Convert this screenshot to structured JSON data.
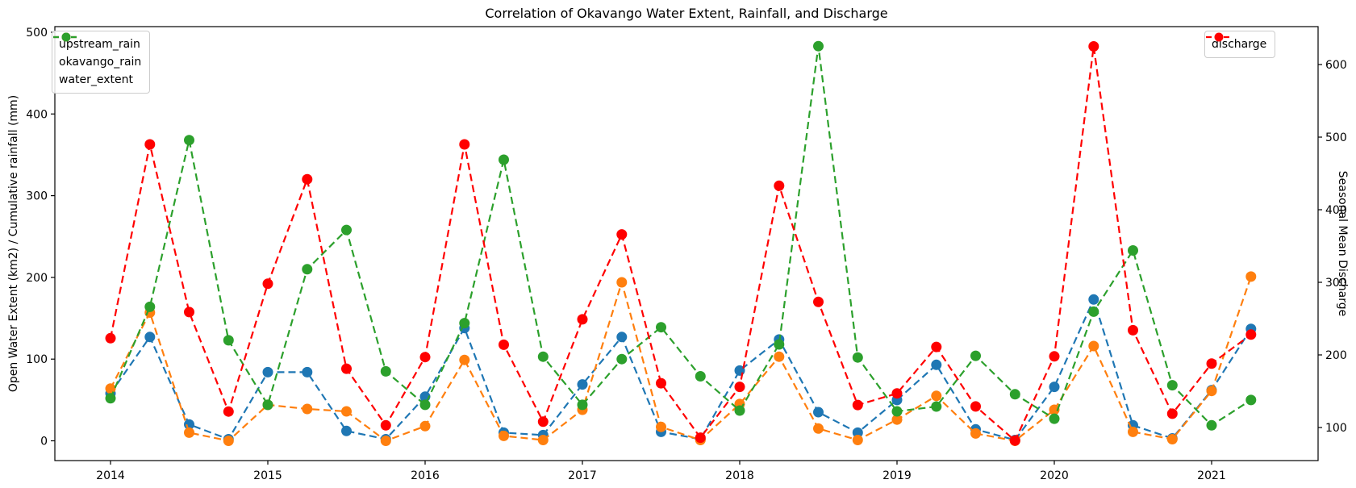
{
  "figure": {
    "title": "Correlation of Okavango Water Extent, Rainfall, and Discharge",
    "left_axis_label": "Open Water Extent (km2) / Cumulative rainfall (mm)",
    "right_axis_label": "Seasonal Mean Discharge",
    "background_color": "#ffffff",
    "spine_color": "#000000"
  },
  "chart_data": {
    "type": "line",
    "title": "Correlation of Okavango Water Extent, Rainfall, and Discharge",
    "xlabel": "",
    "ylabel_left": "Open Water Extent (km2) / Cumulative rainfall (mm)",
    "ylabel_right": "Seasonal Mean Discharge",
    "grid": false,
    "line_style": "dashed",
    "marker": "circle",
    "x": [
      2014.0,
      2014.25,
      2014.5,
      2014.75,
      2015.0,
      2015.25,
      2015.5,
      2015.75,
      2016.0,
      2016.25,
      2016.5,
      2016.75,
      2017.0,
      2017.25,
      2017.5,
      2017.75,
      2018.0,
      2018.25,
      2018.5,
      2018.75,
      2019.0,
      2019.25,
      2019.5,
      2019.75,
      2020.0,
      2020.25,
      2020.5,
      2020.75,
      2021.0,
      2021.25
    ],
    "x_ticks": [
      2014,
      2015,
      2016,
      2017,
      2018,
      2019,
      2020,
      2021
    ],
    "x_tick_labels": [
      "2014",
      "2015",
      "2016",
      "2017",
      "2018",
      "2019",
      "2020",
      "2021"
    ],
    "left_yticks": [
      0,
      100,
      200,
      300,
      400,
      500
    ],
    "right_yticks": [
      100,
      200,
      300,
      400,
      500,
      600
    ],
    "left_ylim": [
      -20,
      507
    ],
    "right_ylim": [
      57,
      652
    ],
    "legend_left_entries": [
      "upstream_rain",
      "okavango_rain",
      "water_extent"
    ],
    "legend_right_entries": [
      "discharge"
    ],
    "series": [
      {
        "name": "upstream_rain",
        "axis": "left",
        "color": "#1f77b4",
        "values": [
          58,
          127,
          20,
          2,
          84,
          84,
          12,
          2,
          54,
          138,
          10,
          7,
          69,
          127,
          11,
          2,
          86,
          124,
          35,
          10,
          50,
          93,
          14,
          1,
          66,
          173,
          19,
          3,
          62,
          137
        ]
      },
      {
        "name": "okavango_rain",
        "axis": "left",
        "color": "#ff7f0e",
        "values": [
          64,
          157,
          10,
          0,
          44,
          39,
          36,
          0,
          18,
          99,
          6,
          1,
          38,
          194,
          17,
          1,
          45,
          103,
          15,
          1,
          26,
          55,
          9,
          0,
          38,
          116,
          11,
          2,
          61,
          201
        ]
      },
      {
        "name": "water_extent",
        "axis": "left",
        "color": "#2ca02c",
        "values": [
          52,
          164,
          368,
          123,
          44,
          210,
          258,
          85,
          44,
          144,
          344,
          103,
          44,
          100,
          139,
          79,
          37,
          118,
          483,
          102,
          36,
          42,
          104,
          57,
          27,
          158,
          233,
          68,
          19,
          50
        ]
      },
      {
        "name": "discharge",
        "axis": "right",
        "color": "#ff0000",
        "values": [
          223,
          490,
          259,
          122,
          298,
          442,
          181,
          103,
          197,
          490,
          214,
          108,
          249,
          366,
          161,
          86,
          156,
          433,
          273,
          131,
          147,
          211,
          129,
          82,
          198,
          625,
          234,
          119,
          188,
          228
        ]
      }
    ]
  }
}
